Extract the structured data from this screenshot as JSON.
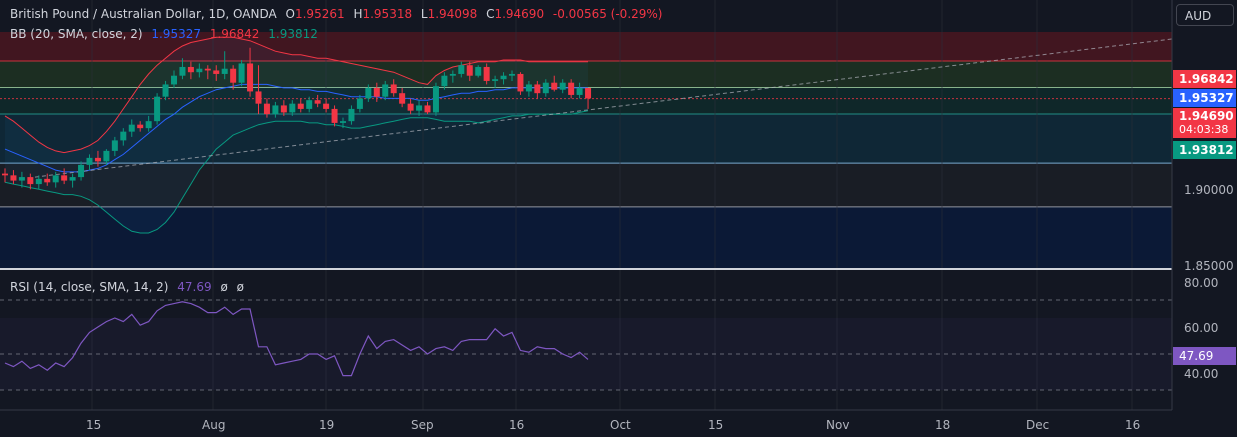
{
  "header": {
    "symbol": "British Pound / Australian Dollar, 1D, OANDA",
    "open_label": "O",
    "open": "1.95261",
    "high_label": "H",
    "high": "1.95318",
    "low_label": "L",
    "low": "1.94098",
    "close_label": "C",
    "close": "1.94690",
    "change": "-0.00565 (-0.29%)"
  },
  "bb_indicator": {
    "label": "BB (20, SMA, close, 2)",
    "basis": "1.95327",
    "upper": "1.96842",
    "lower": "1.93812"
  },
  "rsi_indicator": {
    "label": "RSI (14, close, SMA, 14, 2)",
    "value": "47.69",
    "extra1": "ø",
    "extra2": "ø"
  },
  "currency_button": "AUD",
  "price_axis": {
    "labels": [
      "1.90000",
      "1.85000"
    ],
    "tags": {
      "upper": "1.96842",
      "basis": "1.95327",
      "last": "1.94690",
      "countdown": "04:03:38",
      "lower": "1.93812"
    }
  },
  "rsi_axis": {
    "labels": [
      "80.00",
      "60.00",
      "40.00"
    ],
    "tag": "47.69"
  },
  "time_axis": {
    "labels": [
      "15",
      "Aug",
      "19",
      "Sep",
      "16",
      "Oct",
      "15",
      "Nov",
      "18",
      "Dec",
      "16"
    ]
  },
  "colors": {
    "bg": "#131722",
    "up": "#089981",
    "down": "#f23645",
    "bb_upper": "#f23645",
    "bb_basis": "#2962ff",
    "bb_lower": "#089981",
    "rsi": "#7e57c2"
  },
  "chart_data": {
    "type": "candlestick",
    "interval": "1D",
    "ylim": [
      1.85,
      1.985
    ],
    "candles": [
      [
        1.904,
        1.907,
        1.899,
        1.903
      ],
      [
        1.903,
        1.906,
        1.898,
        1.9
      ],
      [
        1.9,
        1.905,
        1.896,
        1.902
      ],
      [
        1.902,
        1.904,
        1.895,
        1.898
      ],
      [
        1.898,
        1.903,
        1.895,
        1.901
      ],
      [
        1.901,
        1.904,
        1.897,
        1.899
      ],
      [
        1.899,
        1.905,
        1.896,
        1.903
      ],
      [
        1.903,
        1.907,
        1.898,
        1.9
      ],
      [
        1.9,
        1.904,
        1.896,
        1.902
      ],
      [
        1.902,
        1.911,
        1.9,
        1.909
      ],
      [
        1.909,
        1.915,
        1.906,
        1.913
      ],
      [
        1.913,
        1.917,
        1.908,
        1.911
      ],
      [
        1.911,
        1.918,
        1.909,
        1.917
      ],
      [
        1.917,
        1.925,
        1.914,
        1.923
      ],
      [
        1.923,
        1.93,
        1.92,
        1.928
      ],
      [
        1.928,
        1.935,
        1.925,
        1.932
      ],
      [
        1.932,
        1.934,
        1.928,
        1.93
      ],
      [
        1.93,
        1.937,
        1.928,
        1.934
      ],
      [
        1.934,
        1.95,
        1.932,
        1.948
      ],
      [
        1.948,
        1.957,
        1.946,
        1.955
      ],
      [
        1.955,
        1.963,
        1.953,
        1.96
      ],
      [
        1.96,
        1.97,
        1.958,
        1.965
      ],
      [
        1.965,
        1.968,
        1.958,
        1.962
      ],
      [
        1.962,
        1.967,
        1.959,
        1.964
      ],
      [
        1.964,
        1.966,
        1.958,
        1.963
      ],
      [
        1.963,
        1.966,
        1.957,
        1.961
      ],
      [
        1.961,
        1.974,
        1.958,
        1.964
      ],
      [
        1.964,
        1.966,
        1.952,
        1.956
      ],
      [
        1.956,
        1.969,
        1.954,
        1.967
      ],
      [
        1.967,
        1.976,
        1.948,
        1.951
      ],
      [
        1.951,
        1.966,
        1.938,
        1.944
      ],
      [
        1.944,
        1.947,
        1.936,
        1.938
      ],
      [
        1.938,
        1.945,
        1.936,
        1.943
      ],
      [
        1.943,
        1.946,
        1.937,
        1.939
      ],
      [
        1.939,
        1.946,
        1.937,
        1.944
      ],
      [
        1.944,
        1.947,
        1.939,
        1.941
      ],
      [
        1.941,
        1.948,
        1.939,
        1.946
      ],
      [
        1.946,
        1.949,
        1.942,
        1.944
      ],
      [
        1.944,
        1.947,
        1.939,
        1.941
      ],
      [
        1.941,
        1.943,
        1.931,
        1.933
      ],
      [
        1.933,
        1.936,
        1.93,
        1.934
      ],
      [
        1.934,
        1.943,
        1.932,
        1.941
      ],
      [
        1.941,
        1.949,
        1.939,
        1.947
      ],
      [
        1.947,
        1.955,
        1.945,
        1.953
      ],
      [
        1.953,
        1.956,
        1.945,
        1.948
      ],
      [
        1.948,
        1.957,
        1.946,
        1.955
      ],
      [
        1.955,
        1.958,
        1.948,
        1.95
      ],
      [
        1.95,
        1.953,
        1.942,
        1.944
      ],
      [
        1.944,
        1.947,
        1.938,
        1.94
      ],
      [
        1.94,
        1.946,
        1.937,
        1.943
      ],
      [
        1.943,
        1.945,
        1.938,
        1.939
      ],
      [
        1.939,
        1.956,
        1.937,
        1.954
      ],
      [
        1.954,
        1.962,
        1.952,
        1.96
      ],
      [
        1.96,
        1.963,
        1.956,
        1.961
      ],
      [
        1.961,
        1.968,
        1.959,
        1.966
      ],
      [
        1.966,
        1.968,
        1.957,
        1.96
      ],
      [
        1.96,
        1.966,
        1.959,
        1.965
      ],
      [
        1.965,
        1.967,
        1.955,
        1.957
      ],
      [
        1.957,
        1.96,
        1.953,
        1.958
      ],
      [
        1.958,
        1.962,
        1.955,
        1.96
      ],
      [
        1.96,
        1.963,
        1.957,
        1.961
      ],
      [
        1.961,
        1.962,
        1.949,
        1.951
      ],
      [
        1.951,
        1.957,
        1.948,
        1.955
      ],
      [
        1.955,
        1.957,
        1.947,
        1.95
      ],
      [
        1.95,
        1.958,
        1.948,
        1.956
      ],
      [
        1.956,
        1.96,
        1.951,
        1.952
      ],
      [
        1.952,
        1.958,
        1.95,
        1.956
      ],
      [
        1.956,
        1.958,
        1.947,
        1.949
      ],
      [
        1.949,
        1.956,
        1.947,
        1.953
      ],
      [
        1.953,
        1.953,
        1.941,
        1.947
      ]
    ],
    "bb_upper": [
      1.937,
      1.934,
      1.93,
      1.926,
      1.922,
      1.919,
      1.917,
      1.916,
      1.917,
      1.918,
      1.92,
      1.923,
      1.928,
      1.934,
      1.941,
      1.948,
      1.955,
      1.961,
      1.966,
      1.97,
      1.974,
      1.977,
      1.979,
      1.98,
      1.981,
      1.982,
      1.982,
      1.982,
      1.981,
      1.98,
      1.978,
      1.976,
      1.974,
      1.973,
      1.972,
      1.972,
      1.971,
      1.97,
      1.97,
      1.969,
      1.968,
      1.967,
      1.966,
      1.965,
      1.964,
      1.963,
      1.962,
      1.96,
      1.958,
      1.956,
      1.955,
      1.96,
      1.963,
      1.965,
      1.966,
      1.967,
      1.968,
      1.968,
      1.968,
      1.969,
      1.969,
      1.969,
      1.968,
      1.968,
      1.968,
      1.968,
      1.968,
      1.968,
      1.968,
      1.968
    ],
    "bb_basis": [
      1.918,
      1.916,
      1.914,
      1.912,
      1.91,
      1.908,
      1.906,
      1.905,
      1.905,
      1.905,
      1.906,
      1.907,
      1.909,
      1.912,
      1.915,
      1.919,
      1.923,
      1.927,
      1.931,
      1.935,
      1.938,
      1.942,
      1.945,
      1.948,
      1.95,
      1.952,
      1.953,
      1.954,
      1.955,
      1.955,
      1.955,
      1.955,
      1.954,
      1.953,
      1.953,
      1.952,
      1.952,
      1.951,
      1.951,
      1.95,
      1.949,
      1.948,
      1.948,
      1.948,
      1.948,
      1.947,
      1.947,
      1.947,
      1.947,
      1.946,
      1.946,
      1.947,
      1.948,
      1.949,
      1.95,
      1.95,
      1.951,
      1.951,
      1.952,
      1.952,
      1.953,
      1.953,
      1.953,
      1.953,
      1.953,
      1.953,
      1.953,
      1.953,
      1.953,
      1.953
    ],
    "bb_lower": [
      1.899,
      1.898,
      1.897,
      1.896,
      1.895,
      1.894,
      1.893,
      1.892,
      1.892,
      1.891,
      1.889,
      1.886,
      1.882,
      1.878,
      1.874,
      1.871,
      1.87,
      1.87,
      1.872,
      1.876,
      1.882,
      1.89,
      1.898,
      1.906,
      1.912,
      1.918,
      1.922,
      1.926,
      1.928,
      1.93,
      1.932,
      1.933,
      1.934,
      1.934,
      1.934,
      1.934,
      1.933,
      1.933,
      1.932,
      1.932,
      1.931,
      1.93,
      1.93,
      1.931,
      1.932,
      1.933,
      1.934,
      1.935,
      1.936,
      1.936,
      1.936,
      1.935,
      1.934,
      1.934,
      1.934,
      1.934,
      1.933,
      1.934,
      1.935,
      1.936,
      1.937,
      1.937,
      1.938,
      1.938,
      1.938,
      1.938,
      1.938,
      1.938,
      1.939,
      1.94
    ],
    "rsi": [
      45,
      43,
      46,
      42,
      44,
      41,
      45,
      43,
      48,
      56,
      62,
      65,
      68,
      70,
      68,
      72,
      66,
      68,
      74,
      77,
      78,
      79,
      78,
      76,
      73,
      73,
      76,
      72,
      75,
      75,
      54,
      54,
      44,
      45,
      46,
      47,
      50,
      50,
      47,
      49,
      38,
      38,
      50,
      60,
      53,
      57,
      58,
      55,
      52,
      54,
      50,
      53,
      54,
      52,
      57,
      58,
      58,
      58,
      64,
      60,
      62,
      52,
      51,
      54,
      53,
      53,
      50,
      48,
      51,
      47
    ],
    "rsi_ylim": [
      20,
      90
    ],
    "hlines": [
      1.96842,
      1.95327,
      1.9469,
      1.93812,
      1.91,
      1.885
    ]
  }
}
